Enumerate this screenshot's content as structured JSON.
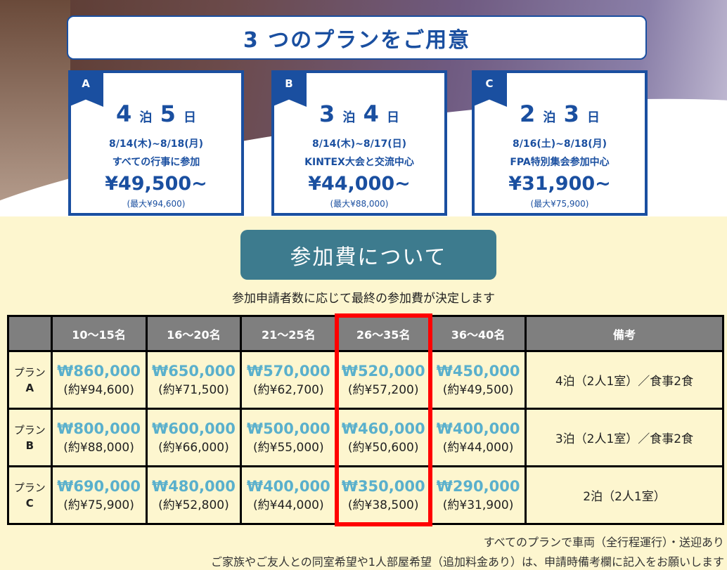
{
  "header": {
    "title": "3 つのプランをご用意"
  },
  "plans": [
    {
      "badge": "A",
      "n": "4",
      "nights_label": "泊",
      "d": "5",
      "days_label": "日",
      "dates": "8/14(木)~8/18(月)",
      "desc": "すべての行事に参加",
      "price": "¥49,500~",
      "max": "(最大¥94,600)"
    },
    {
      "badge": "B",
      "n": "3",
      "nights_label": "泊",
      "d": "4",
      "days_label": "日",
      "dates": "8/14(木)~8/17(日)",
      "desc": "KINTEX大会と交流中心",
      "price": "¥44,000~",
      "max": "(最大¥88,000)"
    },
    {
      "badge": "C",
      "n": "2",
      "nights_label": "泊",
      "d": "3",
      "days_label": "日",
      "dates": "8/16(土)~8/18(月)",
      "desc": "FPA特別集会参加中心",
      "price": "¥31,900~",
      "max": "(最大¥75,900)"
    }
  ],
  "fees": {
    "title": "参加費について",
    "subtitle": "参加申請者数に応じて最終の参加費が決定します",
    "headers": [
      "",
      "10〜15名",
      "16〜20名",
      "21〜25名",
      "26〜35名",
      "36〜40名",
      "備考"
    ],
    "rows": [
      {
        "plan": "プラン",
        "letter": "A",
        "cells": [
          [
            "₩860,000",
            "(約¥94,600)"
          ],
          [
            "₩650,000",
            "(約¥71,500)"
          ],
          [
            "₩570,000",
            "(約¥62,700)"
          ],
          [
            "₩520,000",
            "(約¥57,200)"
          ],
          [
            "₩450,000",
            "(約¥49,500)"
          ]
        ],
        "note": "4泊（2人1室）／食事2食"
      },
      {
        "plan": "プラン",
        "letter": "B",
        "cells": [
          [
            "₩800,000",
            "(約¥88,000)"
          ],
          [
            "₩600,000",
            "(約¥66,000)"
          ],
          [
            "₩500,000",
            "(約¥55,000)"
          ],
          [
            "₩460,000",
            "(約¥50,600)"
          ],
          [
            "₩400,000",
            "(約¥44,000)"
          ]
        ],
        "note": "3泊（2人1室）／食事2食"
      },
      {
        "plan": "プラン",
        "letter": "C",
        "cells": [
          [
            "₩690,000",
            "(約¥75,900)"
          ],
          [
            "₩480,000",
            "(約¥52,800)"
          ],
          [
            "₩400,000",
            "(約¥44,000)"
          ],
          [
            "₩350,000",
            "(約¥38,500)"
          ],
          [
            "₩290,000",
            "(約¥31,900)"
          ]
        ],
        "note": "2泊（2人1室）"
      }
    ],
    "highlight_color": "#ff0000"
  },
  "footer": [
    "すべてのプランで車両（全行程運行）・送迎あり",
    "ご家族やご友人との同室希望や1人部屋希望（追加料金あり）は、申請時備考欄に記入をお願いします"
  ]
}
